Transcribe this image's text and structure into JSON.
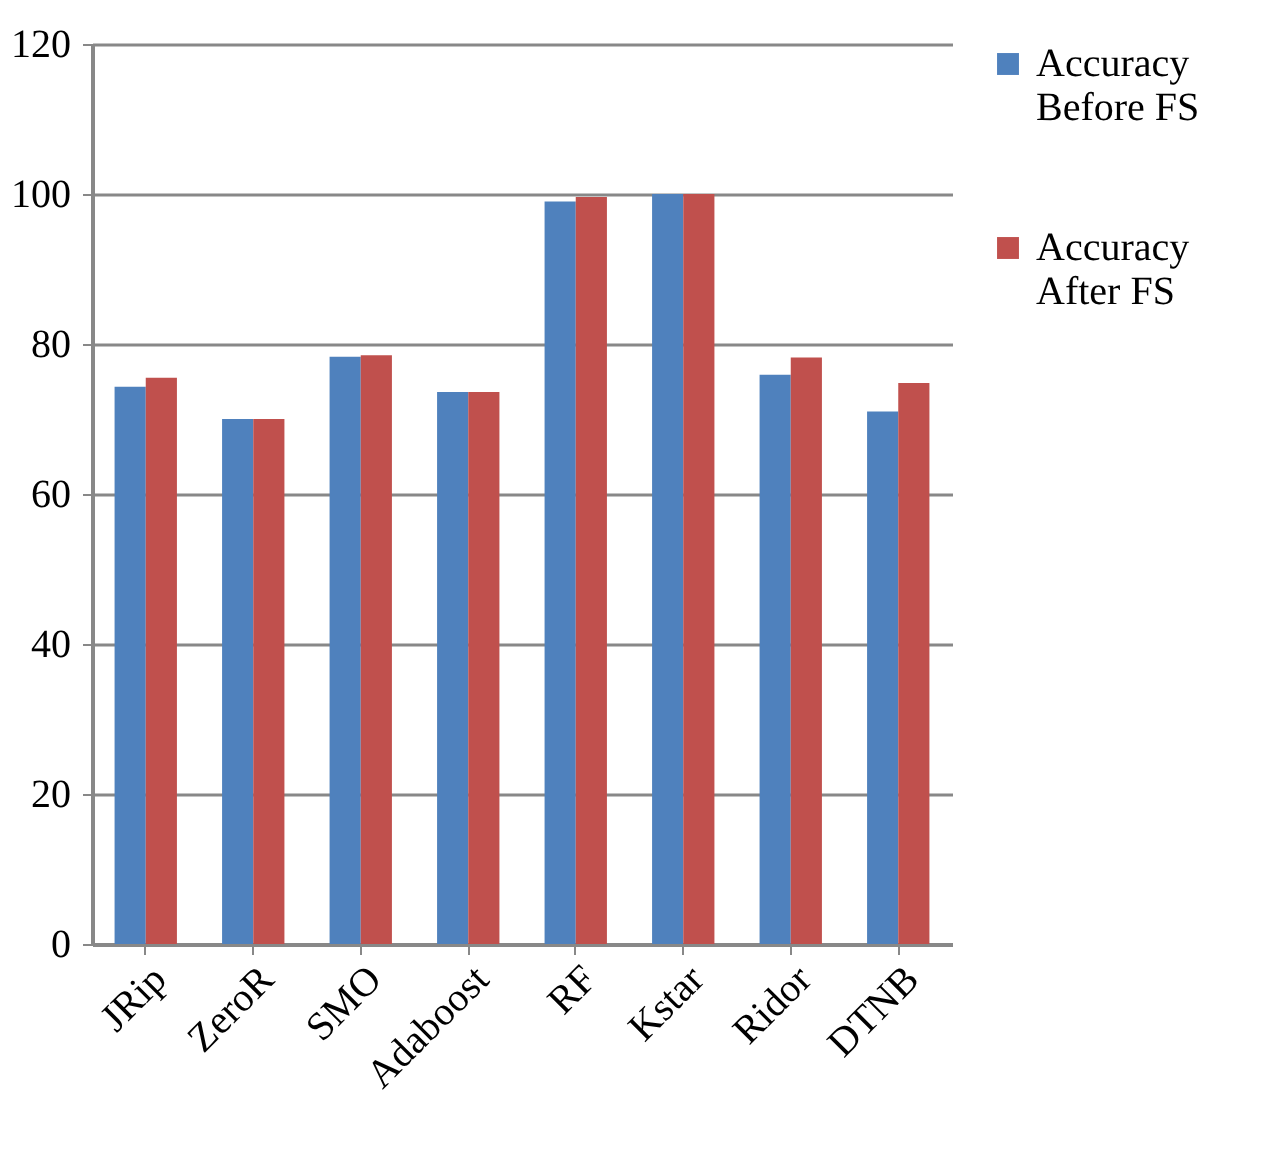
{
  "chart_data": {
    "type": "bar",
    "categories": [
      "JRip",
      "ZeroR",
      "SMO",
      "Adaboost",
      "RF",
      "Kstar",
      "Ridor",
      "DTNB"
    ],
    "series": [
      {
        "name": "Accuracy Before FS",
        "color": "#4f81bd",
        "values": [
          74.3,
          70,
          78.3,
          73.6,
          99,
          100,
          75.9,
          71
        ]
      },
      {
        "name": "Accuracy After FS",
        "color": "#c0504d",
        "values": [
          75.5,
          70,
          78.5,
          73.6,
          99.6,
          100,
          78.2,
          74.8
        ]
      }
    ],
    "ylim": [
      0,
      120
    ],
    "yticks": [
      0,
      20,
      40,
      60,
      80,
      100,
      120
    ],
    "grid": "y",
    "legend": "right"
  }
}
